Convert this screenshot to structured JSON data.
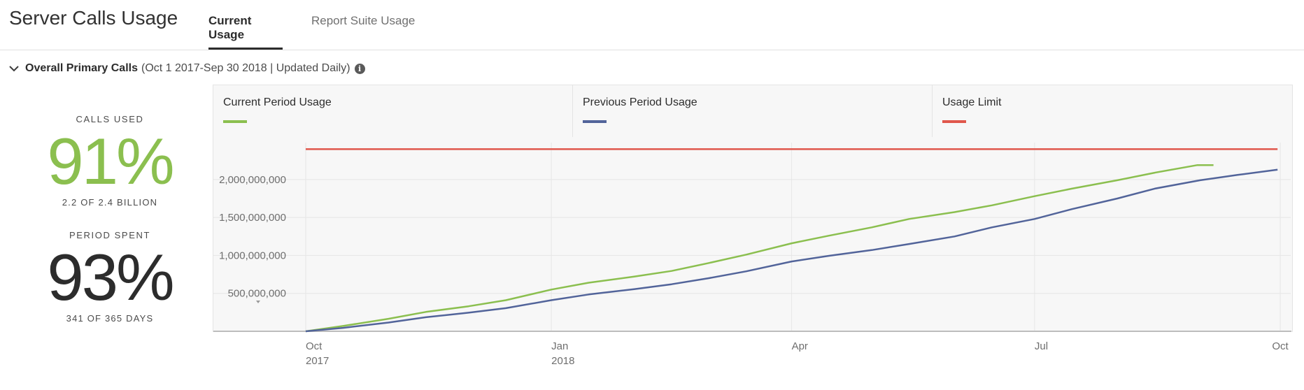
{
  "header": {
    "title": "Server Calls Usage",
    "tabs": [
      {
        "label": "Current Usage",
        "active": true
      },
      {
        "label": "Report Suite Usage",
        "active": false
      }
    ]
  },
  "section": {
    "title": "Overall Primary Calls",
    "subtitle": "(Oct 1 2017-Sep 30 2018 | Updated Daily)",
    "info_icon": "info-icon",
    "toggle_icon": "chevron-down-icon"
  },
  "kpis": {
    "calls_used": {
      "label": "CALLS USED",
      "value": "91%",
      "sub": "2.2 OF 2.4 BILLION",
      "color": "#8bbf4f"
    },
    "period_spent": {
      "label": "PERIOD SPENT",
      "value": "93%",
      "sub": "341 OF 365 DAYS",
      "color": "#2c2c2c"
    }
  },
  "legend": [
    {
      "label": "Current Period Usage",
      "color": "#8bbf4f"
    },
    {
      "label": "Previous Period Usage",
      "color": "#52649a"
    },
    {
      "label": "Usage Limit",
      "color": "#e0574c"
    }
  ],
  "chart_data": {
    "type": "line",
    "y_ticks": [
      "500,000,000",
      "1,000,000,000",
      "1,500,000,000",
      "2,000,000,000"
    ],
    "y_tick_values": [
      500000000,
      1000000000,
      1500000000,
      2000000000
    ],
    "ylim": [
      0,
      2450000000
    ],
    "x_ticks": [
      {
        "month": "Oct",
        "year": "2017",
        "date": "2017-10-01"
      },
      {
        "month": "Jan",
        "year": "2018",
        "date": "2018-01-01"
      },
      {
        "month": "Apr",
        "year": "",
        "date": "2018-04-01"
      },
      {
        "month": "Jul",
        "year": "",
        "date": "2018-07-01"
      },
      {
        "month": "Oct",
        "year": "",
        "date": "2018-10-01"
      }
    ],
    "xlim": [
      "2017-10-01",
      "2018-10-01"
    ],
    "grid": true,
    "series": [
      {
        "name": "Current Period Usage",
        "color": "#8bbf4f",
        "points": [
          [
            "2017-10-01",
            0
          ],
          [
            "2017-10-15",
            70000000
          ],
          [
            "2017-11-01",
            165000000
          ],
          [
            "2017-11-15",
            255000000
          ],
          [
            "2017-12-01",
            330000000
          ],
          [
            "2017-12-15",
            410000000
          ],
          [
            "2018-01-01",
            550000000
          ],
          [
            "2018-01-15",
            640000000
          ],
          [
            "2018-02-01",
            720000000
          ],
          [
            "2018-02-15",
            795000000
          ],
          [
            "2018-03-01",
            900000000
          ],
          [
            "2018-03-15",
            1010000000
          ],
          [
            "2018-04-01",
            1160000000
          ],
          [
            "2018-04-15",
            1260000000
          ],
          [
            "2018-05-01",
            1370000000
          ],
          [
            "2018-05-15",
            1480000000
          ],
          [
            "2018-06-01",
            1570000000
          ],
          [
            "2018-06-15",
            1660000000
          ],
          [
            "2018-07-01",
            1780000000
          ],
          [
            "2018-07-15",
            1880000000
          ],
          [
            "2018-08-01",
            1990000000
          ],
          [
            "2018-08-15",
            2090000000
          ],
          [
            "2018-08-31",
            2190000000
          ],
          [
            "2018-09-06",
            2190000000
          ]
        ]
      },
      {
        "name": "Previous Period Usage",
        "color": "#52649a",
        "points": [
          [
            "2017-10-01",
            0
          ],
          [
            "2017-10-15",
            45000000
          ],
          [
            "2017-11-01",
            115000000
          ],
          [
            "2017-11-15",
            185000000
          ],
          [
            "2017-12-01",
            245000000
          ],
          [
            "2017-12-15",
            305000000
          ],
          [
            "2018-01-01",
            410000000
          ],
          [
            "2018-01-15",
            485000000
          ],
          [
            "2018-02-01",
            555000000
          ],
          [
            "2018-02-15",
            620000000
          ],
          [
            "2018-03-01",
            700000000
          ],
          [
            "2018-03-15",
            790000000
          ],
          [
            "2018-04-01",
            920000000
          ],
          [
            "2018-04-15",
            995000000
          ],
          [
            "2018-05-01",
            1070000000
          ],
          [
            "2018-05-15",
            1150000000
          ],
          [
            "2018-06-01",
            1250000000
          ],
          [
            "2018-06-15",
            1370000000
          ],
          [
            "2018-07-01",
            1480000000
          ],
          [
            "2018-07-15",
            1610000000
          ],
          [
            "2018-08-01",
            1750000000
          ],
          [
            "2018-08-15",
            1880000000
          ],
          [
            "2018-09-01",
            1990000000
          ],
          [
            "2018-09-15",
            2060000000
          ],
          [
            "2018-09-30",
            2130000000
          ]
        ]
      },
      {
        "name": "Usage Limit",
        "color": "#e0574c",
        "points": [
          [
            "2017-10-01",
            2400000000
          ],
          [
            "2018-09-30",
            2400000000
          ]
        ]
      }
    ]
  }
}
